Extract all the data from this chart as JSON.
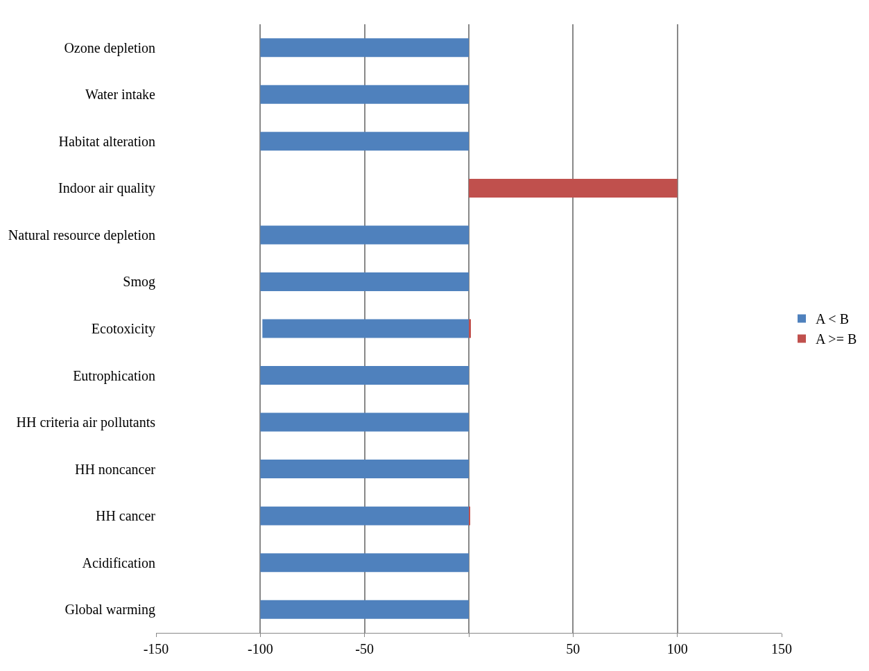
{
  "chart_data": {
    "type": "bar",
    "orientation": "horizontal",
    "stacked": true,
    "categories": [
      "Ozone depletion",
      "Water intake",
      "Habitat alteration",
      "Indoor air quality",
      "Natural resource depletion",
      "Smog",
      "Ecotoxicity",
      "Eutrophication",
      "HH criteria air pollutants",
      "HH noncancer",
      "HH cancer",
      "Acidification",
      "Global warming"
    ],
    "series": [
      {
        "name": "A < B",
        "color": "#4f81bd",
        "values": [
          -100,
          -100,
          -100,
          null,
          -100,
          -100,
          -99,
          -100,
          -100,
          -100,
          -100,
          -100,
          -100
        ]
      },
      {
        "name": "A >= B",
        "color": "#c0504d",
        "values": [
          null,
          null,
          null,
          100,
          null,
          null,
          1,
          null,
          null,
          null,
          0.5,
          null,
          null
        ]
      }
    ],
    "xlim": [
      -150,
      150
    ],
    "xticks": [
      -150,
      -100,
      -50,
      {
        "value": 0,
        "label": null
      },
      50,
      100,
      150
    ],
    "grid": "x",
    "legend": "right"
  }
}
